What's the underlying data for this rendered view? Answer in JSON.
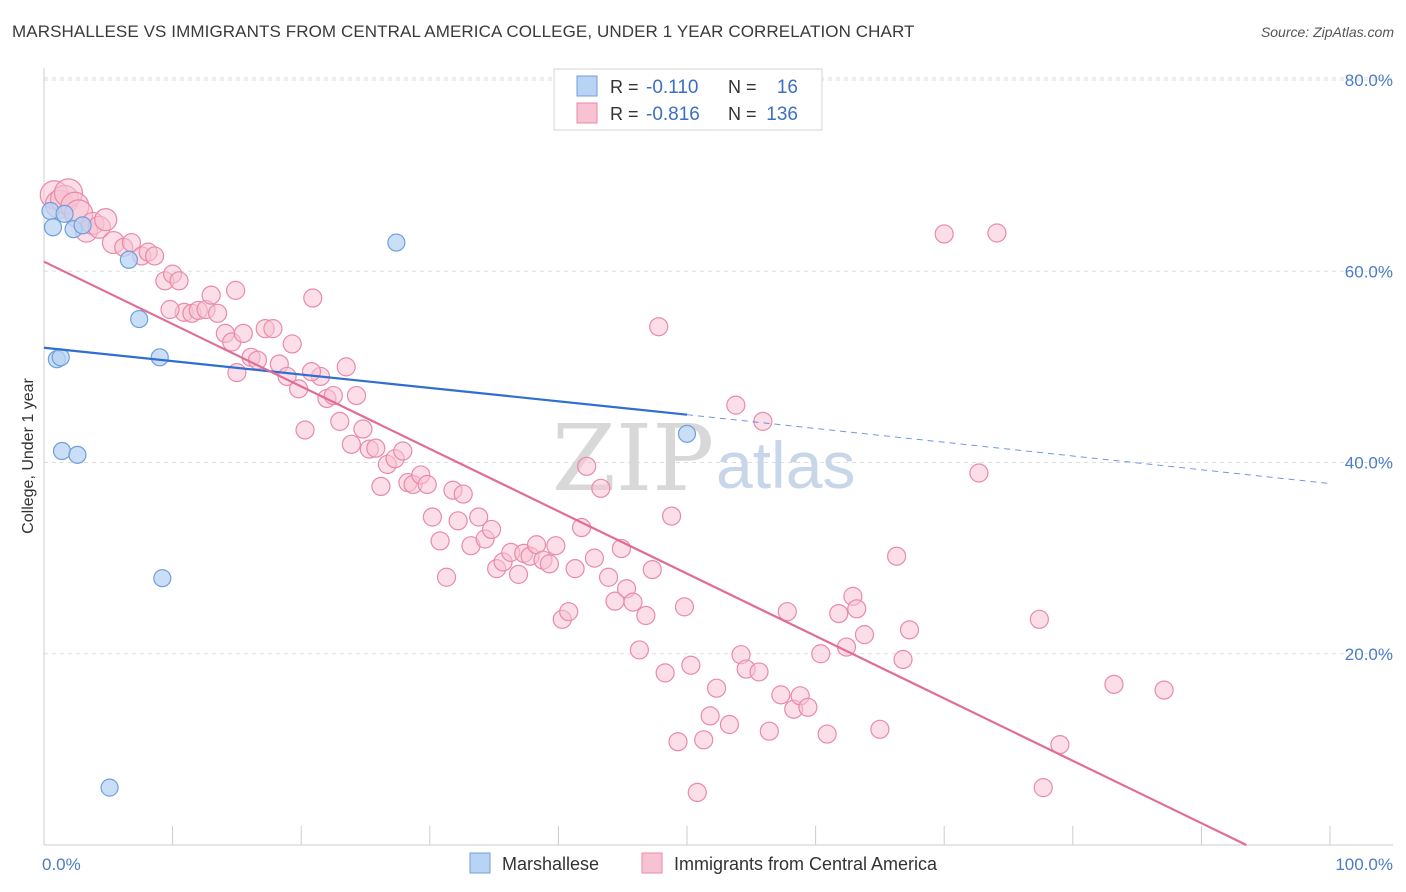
{
  "header": {
    "title": "MARSHALLESE VS IMMIGRANTS FROM CENTRAL AMERICA COLLEGE, UNDER 1 YEAR CORRELATION CHART",
    "source": "Source: ZipAtlas.com"
  },
  "watermark": {
    "zip": "ZIP",
    "atlas": "atlas"
  },
  "legend_top": {
    "rows": [
      {
        "r_label": "R =",
        "r_value": "-0.110",
        "n_label": "N =",
        "n_value": "16"
      },
      {
        "r_label": "R =",
        "r_value": "-0.816",
        "n_label": "N =",
        "n_value": "136"
      }
    ]
  },
  "colors": {
    "blue_fill": "#b8d3f3",
    "blue_stroke": "#6f9fdc",
    "blue_line": "#2f6fcf",
    "pink_fill": "#f7c3d3",
    "pink_stroke": "#e98aa9",
    "pink_line": "#e06d98",
    "grid": "#dddddd",
    "tick_text": "#4a7cc7"
  },
  "chart_data": {
    "type": "scatter",
    "title": "MARSHALLESE VS IMMIGRANTS FROM CENTRAL AMERICA COLLEGE, UNDER 1 YEAR CORRELATION CHART",
    "xlabel": "",
    "ylabel": "College, Under 1 year",
    "xlim": [
      0,
      100
    ],
    "ylim": [
      0,
      80
    ],
    "x_ticks": [
      0,
      100
    ],
    "x_tick_labels": [
      "0.0%",
      "100.0%"
    ],
    "y_ticks": [
      20,
      40,
      60,
      80
    ],
    "y_tick_labels": [
      "20.0%",
      "40.0%",
      "60.0%",
      "80.0%"
    ],
    "grid": true,
    "legend_position": "top-center",
    "series": [
      {
        "name": "Marshallese",
        "r": -0.11,
        "n": 16,
        "trend": {
          "x0": 0,
          "y0": 52.0,
          "x1": 50,
          "y1": 45.0,
          "extend_to": 100,
          "y_extended": 37.8
        },
        "points": [
          [
            0.5,
            66.3
          ],
          [
            0.7,
            64.6
          ],
          [
            1.0,
            50.8
          ],
          [
            1.3,
            51.0
          ],
          [
            1.4,
            41.2
          ],
          [
            2.3,
            64.4
          ],
          [
            2.6,
            40.8
          ],
          [
            3.0,
            64.8
          ],
          [
            5.1,
            6.0
          ],
          [
            6.6,
            61.2
          ],
          [
            7.4,
            55.0
          ],
          [
            9.0,
            51.0
          ],
          [
            9.2,
            27.9
          ],
          [
            27.4,
            63.0
          ],
          [
            50.0,
            43.0
          ],
          [
            1.6,
            66.0
          ]
        ]
      },
      {
        "name": "Immigrants from Central America",
        "r": -0.816,
        "n": 136,
        "trend": {
          "x0": 0,
          "y0": 61.0,
          "x1": 93.5,
          "y1": 0
        },
        "points": [
          [
            0.8,
            68.0
          ],
          [
            1.2,
            67.0
          ],
          [
            1.6,
            67.5
          ],
          [
            1.9,
            68.2
          ],
          [
            2.4,
            66.8
          ],
          [
            2.7,
            66.0
          ],
          [
            3.3,
            64.2
          ],
          [
            3.8,
            65.0
          ],
          [
            4.3,
            64.6
          ],
          [
            4.8,
            65.4
          ],
          [
            5.4,
            63.0
          ],
          [
            6.2,
            62.5
          ],
          [
            6.8,
            63.0
          ],
          [
            7.6,
            61.6
          ],
          [
            8.1,
            62.0
          ],
          [
            8.6,
            61.6
          ],
          [
            9.4,
            59.0
          ],
          [
            10.0,
            59.7
          ],
          [
            10.5,
            59.0
          ],
          [
            10.9,
            55.7
          ],
          [
            11.5,
            55.6
          ],
          [
            12.0,
            55.9
          ],
          [
            12.6,
            56.0
          ],
          [
            13.0,
            57.5
          ],
          [
            13.5,
            55.6
          ],
          [
            14.1,
            53.5
          ],
          [
            14.6,
            52.6
          ],
          [
            15.0,
            49.4
          ],
          [
            15.5,
            53.5
          ],
          [
            16.1,
            51.0
          ],
          [
            16.6,
            50.7
          ],
          [
            17.2,
            54.0
          ],
          [
            17.8,
            54.0
          ],
          [
            18.3,
            50.3
          ],
          [
            18.9,
            49.0
          ],
          [
            19.3,
            52.4
          ],
          [
            19.8,
            47.7
          ],
          [
            20.3,
            43.4
          ],
          [
            20.9,
            57.2
          ],
          [
            21.5,
            49.0
          ],
          [
            22.0,
            46.7
          ],
          [
            22.5,
            47.0
          ],
          [
            23.0,
            44.3
          ],
          [
            23.5,
            50.0
          ],
          [
            23.9,
            41.9
          ],
          [
            24.3,
            47.0
          ],
          [
            24.8,
            43.5
          ],
          [
            25.3,
            41.4
          ],
          [
            25.8,
            41.5
          ],
          [
            26.2,
            37.5
          ],
          [
            26.7,
            39.8
          ],
          [
            27.3,
            40.4
          ],
          [
            27.9,
            41.2
          ],
          [
            28.3,
            37.9
          ],
          [
            28.7,
            37.7
          ],
          [
            29.3,
            38.7
          ],
          [
            29.8,
            37.7
          ],
          [
            30.2,
            34.3
          ],
          [
            30.8,
            31.8
          ],
          [
            31.3,
            28.0
          ],
          [
            31.8,
            37.1
          ],
          [
            32.2,
            33.9
          ],
          [
            32.6,
            36.7
          ],
          [
            33.2,
            31.3
          ],
          [
            33.8,
            34.3
          ],
          [
            34.3,
            32.0
          ],
          [
            34.8,
            33.0
          ],
          [
            35.2,
            28.9
          ],
          [
            35.7,
            29.6
          ],
          [
            36.3,
            30.6
          ],
          [
            36.9,
            28.3
          ],
          [
            37.3,
            30.5
          ],
          [
            37.8,
            30.2
          ],
          [
            38.3,
            31.4
          ],
          [
            38.8,
            29.8
          ],
          [
            39.3,
            29.4
          ],
          [
            39.8,
            31.3
          ],
          [
            40.3,
            23.6
          ],
          [
            40.8,
            24.4
          ],
          [
            41.3,
            28.9
          ],
          [
            41.8,
            33.2
          ],
          [
            42.2,
            39.6
          ],
          [
            42.8,
            30.0
          ],
          [
            43.3,
            37.3
          ],
          [
            43.9,
            28.0
          ],
          [
            44.4,
            25.5
          ],
          [
            44.9,
            31.0
          ],
          [
            45.3,
            26.8
          ],
          [
            45.8,
            25.4
          ],
          [
            46.3,
            20.4
          ],
          [
            46.8,
            24.0
          ],
          [
            47.3,
            28.8
          ],
          [
            47.8,
            54.2
          ],
          [
            48.3,
            18.0
          ],
          [
            48.8,
            34.4
          ],
          [
            49.3,
            10.8
          ],
          [
            49.8,
            24.9
          ],
          [
            50.3,
            18.8
          ],
          [
            50.8,
            5.5
          ],
          [
            51.3,
            11.0
          ],
          [
            51.8,
            13.5
          ],
          [
            52.3,
            16.4
          ],
          [
            53.3,
            12.6
          ],
          [
            53.8,
            46.0
          ],
          [
            54.2,
            19.9
          ],
          [
            54.6,
            18.4
          ],
          [
            55.6,
            18.1
          ],
          [
            55.9,
            44.3
          ],
          [
            56.4,
            11.9
          ],
          [
            57.3,
            15.7
          ],
          [
            57.8,
            24.4
          ],
          [
            58.3,
            14.2
          ],
          [
            58.8,
            15.6
          ],
          [
            59.4,
            14.4
          ],
          [
            60.4,
            20.0
          ],
          [
            60.9,
            11.6
          ],
          [
            61.8,
            24.2
          ],
          [
            62.4,
            20.7
          ],
          [
            62.9,
            26.0
          ],
          [
            63.2,
            24.7
          ],
          [
            63.8,
            22.0
          ],
          [
            65.0,
            12.1
          ],
          [
            66.3,
            30.2
          ],
          [
            66.8,
            19.4
          ],
          [
            67.3,
            22.5
          ],
          [
            70.0,
            63.9
          ],
          [
            72.7,
            38.9
          ],
          [
            74.1,
            64.0
          ],
          [
            77.4,
            23.6
          ],
          [
            77.7,
            6.0
          ],
          [
            79.0,
            10.5
          ],
          [
            83.2,
            16.8
          ],
          [
            87.1,
            16.2
          ],
          [
            20.8,
            49.5
          ],
          [
            9.8,
            56.0
          ],
          [
            14.9,
            58.0
          ]
        ]
      }
    ]
  },
  "legend_bottom": {
    "items": [
      {
        "label": "Marshallese"
      },
      {
        "label": "Immigrants from Central America"
      }
    ]
  }
}
